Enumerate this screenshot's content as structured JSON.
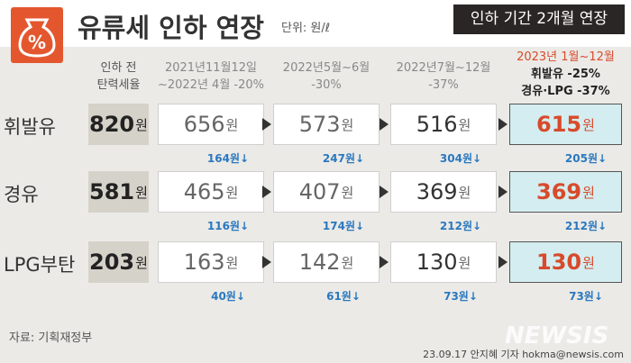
{
  "header": {
    "title": "유류세 인하 연장",
    "unit_note": "단위: 원/ℓ",
    "badge": "인하 기간 2개월 연장"
  },
  "table": {
    "unit": "원",
    "columns": [
      [
        "인하 전",
        "탄력세율"
      ],
      [
        "2021년11월12일",
        "~2022년 4월 -20%"
      ],
      [
        "2022년5월~6월",
        "-30%"
      ],
      [
        "2022년7월~12월",
        "-37%"
      ],
      [
        "2023년 1월~12월",
        "휘발유 -25%",
        "경유·LPG -37%"
      ]
    ],
    "rows": [
      {
        "label": "휘발유",
        "values": [
          820,
          656,
          573,
          516,
          615
        ],
        "cuts": [
          "164원↓",
          "247원↓",
          "304원↓",
          "205원↓"
        ]
      },
      {
        "label": "경유",
        "values": [
          581,
          465,
          407,
          369,
          369
        ],
        "cuts": [
          "116원↓",
          "174원↓",
          "212원↓",
          "212원↓"
        ]
      },
      {
        "label": "LPG부탄",
        "values": [
          203,
          163,
          142,
          130,
          130
        ],
        "cuts": [
          "40원↓",
          "61원↓",
          "73원↓",
          "73원↓"
        ]
      }
    ]
  },
  "footer": {
    "source": "자료: 기획재정부",
    "credit": "23.09.17 안지혜 기자 hokma@newsis.com",
    "watermark": "NEWSIS"
  }
}
